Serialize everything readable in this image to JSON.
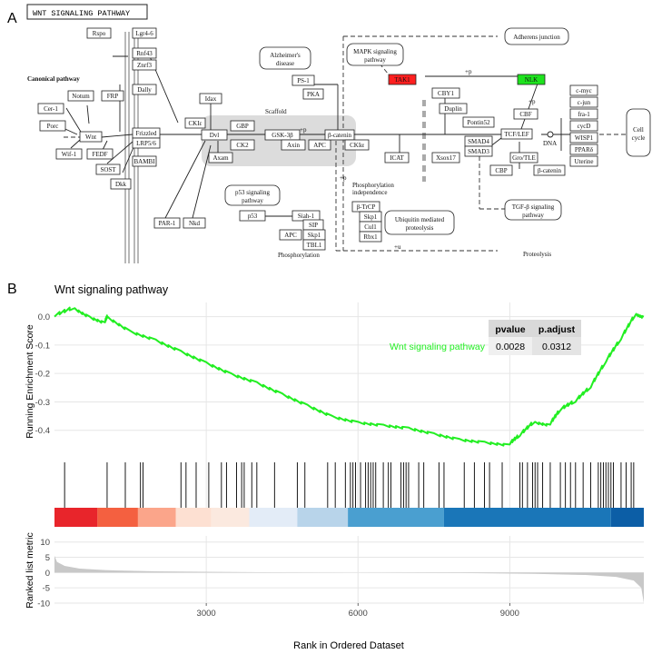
{
  "panel_a": {
    "letter": "A",
    "title": "WNT SIGNALING PATHWAY",
    "labels": {
      "canonical": "Canonical pathway",
      "scaffold": "Scaffold",
      "phosphorylation": "Phosphorylation",
      "phospho_indep_1": "Phosphorylation",
      "phospho_indep_2": "independence",
      "dna": "DNA",
      "proteolysis": "Proteolysis",
      "plus_p_1": "+p",
      "plus_p_2": "+p",
      "plus_p_3": "+p",
      "plus_p_4": "+p",
      "plus_u": "+u"
    },
    "pathways": {
      "alzheimers_1": "Alzheimer's",
      "alzheimers_2": "disease",
      "mapk_1": "MAPK signaling",
      "mapk_2": "pathway",
      "adherens": "Adherens junction",
      "p53_1": "p53 signaling",
      "p53_2": "pathway",
      "ubiquitin_1": "Ubiquitin mediated",
      "ubiquitin_2": "proteolysis",
      "tgfb_1": "TGF-β signaling",
      "tgfb_2": "pathway",
      "cellcycle_1": "Cell",
      "cellcycle_2": "cycle"
    },
    "genes": {
      "rspo": "Rspo",
      "lgr": "Lgr4-6",
      "rnf43": "Rnf43",
      "znrf3": "Znrf3",
      "dally": "Dally",
      "frizzled": "Frizzled",
      "lrp": "LRP5/6",
      "bambi": "BAMBI",
      "notum": "Notum",
      "frp": "FRP",
      "cer1": "Cer-1",
      "porc": "Porc",
      "wnt": "Wnt",
      "wif1": "Wif-1",
      "fedf": "FEDF",
      "sost": "SOST",
      "dkk": "Dkk",
      "idax": "Idax",
      "cki_e": "CKIε",
      "dvl": "Dvl",
      "gbp": "GBP",
      "ck2": "CK2",
      "axam": "Axam",
      "gsk3b": "GSK-3β",
      "axin": "Axin",
      "apc": "APC",
      "bcatenin": "β-catenin",
      "ckia": "CKIα",
      "ps1": "PS-1",
      "pka": "PKA",
      "tak1": "TAK1",
      "nlk": "NLK",
      "cby1": "CBY1",
      "duplin": "Duplin",
      "pontin52": "Pontin52",
      "icat": "ICAT",
      "xsox17": "Xsox17",
      "cbf_top": "CBF",
      "tcf": "TCF/LEF",
      "smad4": "SMAD4",
      "smad3": "SMAD3",
      "cbp": "CBP",
      "groucho": "Gro/TLE",
      "bcat2": "β-catenin",
      "cmyc": "c-myc",
      "cjun": "c-jun",
      "fra1": "fra-1",
      "cycd": "cycD",
      "wisp1": "WISP1",
      "ppard": "PPARδ",
      "uterine": "Uterine",
      "p53": "p53",
      "siah1": "Siah-1",
      "sip": "SIP",
      "apc2": "APC",
      "skp1a": "Skp1",
      "tbl1": "TBL1",
      "btrcp": "β-TrCP",
      "skp1b": "Skp1",
      "cul1": "Cul1",
      "rbx1": "Rbx1",
      "par1": "PAR-1",
      "nkd": "Nkd"
    },
    "colors": {
      "tak1": "#ff1f1f",
      "nlk": "#1ee31e",
      "scaffold": "#dcdcdc"
    }
  },
  "panel_b": {
    "letter": "B",
    "title": "Wnt signaling pathway",
    "ylabel_top": "Running Enrichment Score",
    "ylabel_bottom": "Ranked list metric",
    "xlabel": "Rank in Ordered Dataset",
    "table": {
      "header_pvalue": "pvalue",
      "header_padjust": "p.adjust",
      "name": "Wnt signaling pathway",
      "pvalue": "0.0028",
      "padjust": "0.0312"
    },
    "colors": {
      "curve": "#22ee22",
      "metric_fill": "#c8c8c8",
      "panel_bg": "#ffffff",
      "grid": "#e6e6e6",
      "hits": "#000000"
    }
  },
  "chart_data": {
    "type": "line",
    "series": [
      {
        "name": "Wnt signaling pathway",
        "x": [
          0,
          400,
          700,
          1000,
          1050,
          1500,
          2000,
          2500,
          3000,
          3500,
          4000,
          4500,
          5000,
          5500,
          6000,
          6500,
          7000,
          7500,
          8000,
          8500,
          9000,
          9200,
          9500,
          9800,
          10000,
          10300,
          10600,
          10900,
          11200,
          11500,
          11650
        ],
        "y": [
          0.0,
          0.03,
          0.0,
          -0.02,
          0.0,
          -0.05,
          -0.08,
          -0.12,
          -0.16,
          -0.2,
          -0.23,
          -0.27,
          -0.31,
          -0.35,
          -0.37,
          -0.38,
          -0.39,
          -0.41,
          -0.43,
          -0.44,
          -0.45,
          -0.42,
          -0.37,
          -0.38,
          -0.33,
          -0.3,
          -0.25,
          -0.16,
          -0.08,
          0.01,
          0.0
        ]
      }
    ],
    "xlim": [
      0,
      11650
    ],
    "x_ticks": [
      3000,
      6000,
      9000
    ],
    "es_ylim": [
      -0.5,
      0.05
    ],
    "es_ticks": [
      0.0,
      -0.1,
      -0.2,
      -0.3,
      -0.4
    ],
    "metric_ylim": [
      -10,
      12
    ],
    "metric_ticks": [
      10,
      5,
      0,
      -5,
      -10
    ],
    "metric_curve": {
      "x": [
        0,
        50,
        200,
        500,
        1000,
        2000,
        4000,
        6000,
        8000,
        9500,
        10500,
        11100,
        11450,
        11600,
        11650
      ],
      "y": [
        5.5,
        3.5,
        2.2,
        1.3,
        0.8,
        0.4,
        0.1,
        0.0,
        -0.15,
        -0.4,
        -0.8,
        -1.4,
        -2.6,
        -5.0,
        -10.0
      ]
    },
    "hit_positions": [
      200,
      1040,
      1400,
      1700,
      1750,
      2500,
      2600,
      2800,
      3050,
      3300,
      3400,
      3600,
      3700,
      3750,
      3900,
      4000,
      4350,
      4800,
      4950,
      5400,
      5550,
      5750,
      5850,
      5900,
      5950,
      6050,
      6150,
      6200,
      6250,
      6300,
      6350,
      6500,
      6600,
      6650,
      6850,
      6900,
      6950,
      7000,
      7200,
      7300,
      7600,
      7700,
      8100,
      8300,
      8500,
      8600,
      8850,
      9200,
      9250,
      9350,
      9450,
      9500,
      9550,
      9650,
      9800,
      10000,
      10100,
      10200,
      10300,
      10450,
      10600,
      10750,
      10800,
      10850,
      10900,
      10950,
      11000,
      11050,
      11200,
      11300,
      11400,
      11450
    ],
    "heat_segments": [
      {
        "from": 0,
        "to": 850,
        "color": "#e8252b"
      },
      {
        "from": 850,
        "to": 1650,
        "color": "#f46040"
      },
      {
        "from": 1650,
        "to": 2400,
        "color": "#fba58a"
      },
      {
        "from": 2400,
        "to": 3100,
        "color": "#fde0d2"
      },
      {
        "from": 3100,
        "to": 3850,
        "color": "#fbe9df"
      },
      {
        "from": 3850,
        "to": 4800,
        "color": "#e3ecf7"
      },
      {
        "from": 4800,
        "to": 5800,
        "color": "#b8d4ea"
      },
      {
        "from": 5800,
        "to": 7700,
        "color": "#4a9fd0"
      },
      {
        "from": 7700,
        "to": 11000,
        "color": "#1a76b8"
      },
      {
        "from": 11000,
        "to": 11650,
        "color": "#0c5ea6"
      }
    ]
  }
}
